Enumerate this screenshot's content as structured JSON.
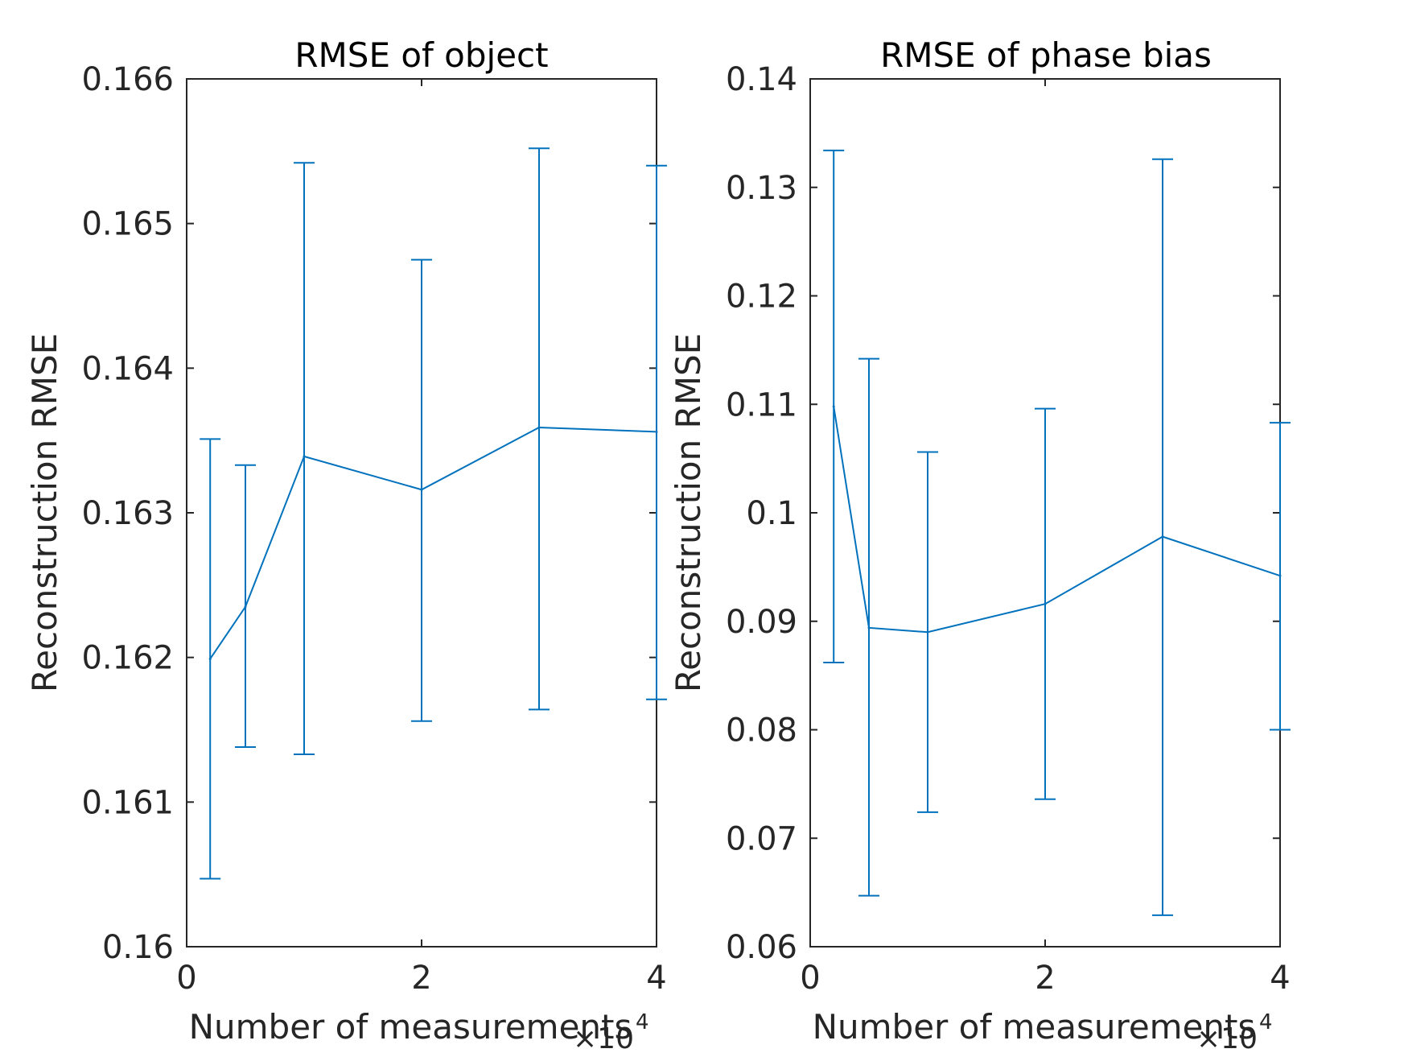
{
  "chart_data": [
    {
      "type": "line",
      "title": "RMSE of object",
      "xlabel": "Number of measurements",
      "ylabel": "Reconstruction RMSE",
      "xlim": [
        0,
        4
      ],
      "ylim": [
        0.16,
        0.166
      ],
      "x_multiplier": "×10",
      "x_multiplier_exp": "4",
      "xticks": [
        0,
        2,
        4
      ],
      "xtick_labels": [
        "0",
        "2",
        "4"
      ],
      "yticks": [
        0.16,
        0.161,
        0.162,
        0.163,
        0.164,
        0.165,
        0.166
      ],
      "ytick_labels": [
        "0.16",
        "0.161",
        "0.162",
        "0.163",
        "0.164",
        "0.165",
        "0.166"
      ],
      "error_bars": true,
      "color": "#0072BD",
      "series": [
        {
          "x": [
            0.2,
            0.5,
            1,
            2,
            3,
            4
          ],
          "y": [
            0.16199,
            0.16235,
            0.16339,
            0.16316,
            0.16359,
            0.16356
          ],
          "err_lower": [
            0.16047,
            0.16138,
            0.16133,
            0.16156,
            0.16164,
            0.16171
          ],
          "err_upper": [
            0.16351,
            0.16333,
            0.16542,
            0.16475,
            0.16552,
            0.1654
          ]
        }
      ]
    },
    {
      "type": "line",
      "title": "RMSE of phase bias",
      "xlabel": "Number of measurements",
      "ylabel": "Reconstruction RMSE",
      "xlim": [
        0,
        4
      ],
      "ylim": [
        0.06,
        0.14
      ],
      "x_multiplier": "×10",
      "x_multiplier_exp": "4",
      "xticks": [
        0,
        2,
        4
      ],
      "xtick_labels": [
        "0",
        "2",
        "4"
      ],
      "yticks": [
        0.06,
        0.07,
        0.08,
        0.09,
        0.1,
        0.11,
        0.12,
        0.13,
        0.14
      ],
      "ytick_labels": [
        "0.06",
        "0.07",
        "0.08",
        "0.09",
        "0.1",
        "0.11",
        "0.12",
        "0.13",
        "0.14"
      ],
      "error_bars": true,
      "color": "#0072BD",
      "series": [
        {
          "x": [
            0.2,
            0.5,
            1,
            2,
            3,
            4
          ],
          "y": [
            0.1098,
            0.0894,
            0.089,
            0.0916,
            0.0978,
            0.0942
          ],
          "err_lower": [
            0.0862,
            0.0647,
            0.0724,
            0.0736,
            0.0629,
            0.08
          ],
          "err_upper": [
            0.1334,
            0.1142,
            0.1056,
            0.1096,
            0.1326,
            0.1083
          ]
        }
      ]
    }
  ]
}
